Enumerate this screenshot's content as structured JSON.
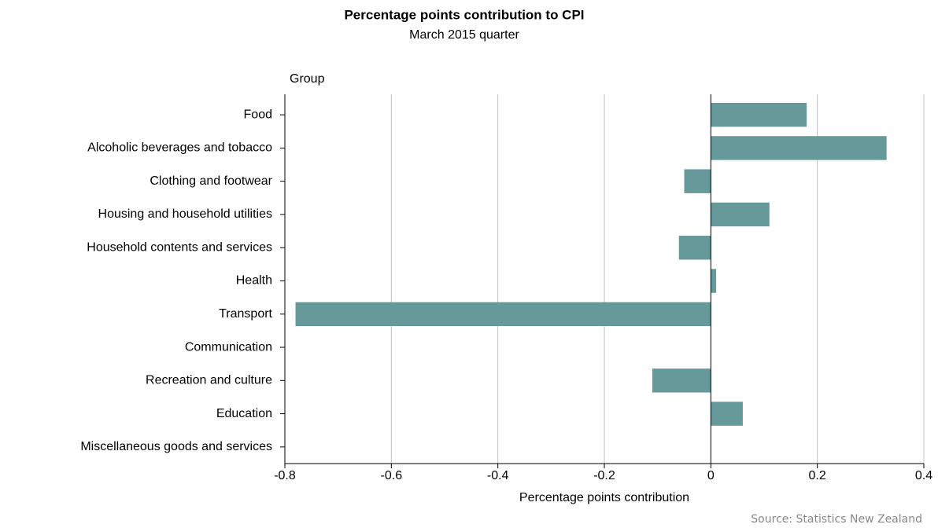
{
  "chart_data": {
    "type": "bar",
    "orientation": "horizontal",
    "title": "Percentage points contribution to CPI",
    "subtitle": "March 2015 quarter",
    "y_axis_label": "Group",
    "x_axis_label": "Percentage points contribution",
    "source": "Source: Statistics New Zealand",
    "categories": [
      "Food",
      "Alcoholic beverages and tobacco",
      "Clothing and footwear",
      "Housing and household utilities",
      "Household contents and services",
      "Health",
      "Transport",
      "Communication",
      "Recreation and culture",
      "Education",
      "Miscellaneous goods and services"
    ],
    "values": [
      0.18,
      0.33,
      -0.05,
      0.11,
      -0.06,
      0.01,
      -0.78,
      0,
      -0.11,
      0.06,
      0
    ],
    "color": "#669999",
    "xlim": [
      -0.8,
      0.4
    ],
    "xticks": [
      -0.8,
      -0.6,
      -0.4,
      -0.2,
      0,
      0.2,
      0.4
    ],
    "grid": true
  }
}
